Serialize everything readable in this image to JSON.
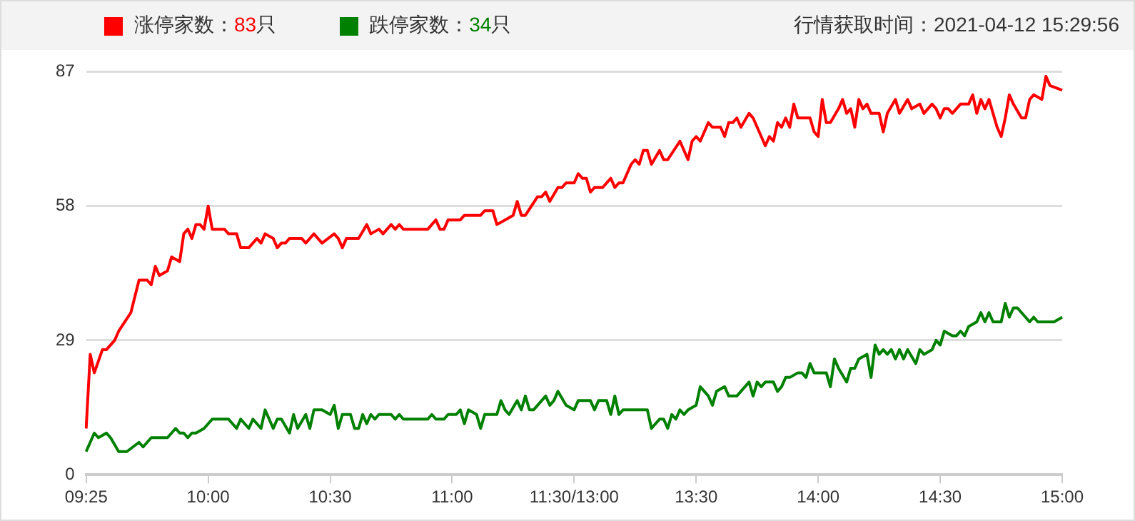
{
  "chart_data": {
    "type": "line",
    "subtitle": "行情获取时间：2021-04-12 15:29:56",
    "legend": "top",
    "grid": "y",
    "ylim": [
      0,
      87
    ],
    "yticks": [
      0,
      29,
      58,
      87
    ],
    "categories": [
      "09:25",
      null,
      null,
      null,
      null,
      null,
      null,
      null,
      null,
      null,
      null,
      null,
      null,
      null,
      null,
      null,
      null,
      null,
      null,
      null,
      null,
      null,
      null,
      null,
      null,
      null,
      null,
      null,
      null,
      null,
      "10:00",
      null,
      null,
      null,
      null,
      null,
      null,
      null,
      null,
      null,
      null,
      null,
      null,
      null,
      null,
      null,
      null,
      null,
      null,
      null,
      null,
      null,
      null,
      null,
      null,
      null,
      null,
      null,
      null,
      null,
      "10:30",
      null,
      null,
      null,
      null,
      null,
      null,
      null,
      null,
      null,
      null,
      null,
      null,
      null,
      null,
      null,
      null,
      null,
      null,
      null,
      null,
      null,
      null,
      null,
      null,
      null,
      null,
      null,
      null,
      null,
      "11:00",
      null,
      null,
      null,
      null,
      null,
      null,
      null,
      null,
      null,
      null,
      null,
      null,
      null,
      null,
      null,
      null,
      null,
      null,
      null,
      null,
      null,
      null,
      null,
      null,
      null,
      null,
      null,
      null,
      null,
      "11:30/13:00",
      null,
      null,
      null,
      null,
      null,
      null,
      null,
      null,
      null,
      null,
      null,
      null,
      null,
      null,
      null,
      null,
      null,
      null,
      null,
      null,
      null,
      null,
      null,
      null,
      null,
      null,
      null,
      null,
      null,
      "13:30",
      null,
      null,
      null,
      null,
      null,
      null,
      null,
      null,
      null,
      null,
      null,
      null,
      null,
      null,
      null,
      null,
      null,
      null,
      null,
      null,
      null,
      null,
      null,
      null,
      null,
      null,
      null,
      null,
      null,
      "14:00",
      null,
      null,
      null,
      null,
      null,
      null,
      null,
      null,
      null,
      null,
      null,
      null,
      null,
      null,
      null,
      null,
      null,
      null,
      null,
      null,
      null,
      null,
      null,
      null,
      null,
      null,
      null,
      null,
      null,
      "14:30",
      null,
      null,
      null,
      null,
      null,
      null,
      null,
      null,
      null,
      null,
      null,
      null,
      null,
      null,
      null,
      null,
      null,
      null,
      null,
      null,
      null,
      null,
      null,
      null,
      null,
      null,
      null,
      null,
      null,
      "15:00"
    ],
    "series": [
      {
        "name": "涨停家数：83只",
        "color": "#ff0000",
        "values": [
          10,
          26,
          22,
          null,
          27,
          27,
          null,
          29,
          31,
          null,
          null,
          35,
          null,
          42,
          null,
          42,
          41,
          45,
          43,
          null,
          44,
          47,
          null,
          46,
          52,
          53,
          51,
          54,
          54,
          53,
          58,
          53,
          null,
          null,
          53,
          52,
          null,
          52,
          49,
          null,
          49,
          null,
          51,
          50,
          52,
          null,
          51,
          49,
          50,
          50,
          51,
          null,
          null,
          51,
          50,
          null,
          52,
          null,
          50,
          null,
          null,
          52,
          51,
          49,
          51,
          null,
          null,
          51,
          null,
          54,
          52,
          null,
          53,
          52,
          null,
          54,
          53,
          54,
          53,
          null,
          null,
          null,
          null,
          null,
          53,
          null,
          55,
          53,
          53,
          55,
          null,
          null,
          55,
          56,
          null,
          null,
          null,
          56,
          57,
          null,
          57,
          54,
          null,
          55,
          null,
          56,
          59,
          56,
          56,
          null,
          null,
          60,
          60,
          61,
          59,
          null,
          62,
          62,
          63,
          null,
          63,
          65,
          64,
          64,
          61,
          62,
          null,
          62,
          null,
          64,
          62,
          63,
          63,
          null,
          67,
          68,
          67,
          70,
          70,
          67,
          null,
          70,
          68,
          68,
          null,
          null,
          72,
          null,
          68,
          72,
          73,
          72,
          null,
          76,
          75,
          null,
          75,
          73,
          76,
          76,
          77,
          75,
          null,
          78,
          77,
          75,
          null,
          71,
          73,
          72,
          76,
          75,
          77,
          75,
          80,
          77,
          77,
          77,
          77,
          74,
          73,
          81,
          76,
          76,
          null,
          79,
          81,
          78,
          79,
          75,
          81,
          79,
          80,
          78,
          null,
          78,
          74,
          78,
          null,
          81,
          78,
          null,
          81,
          79,
          null,
          80,
          78,
          null,
          80,
          79,
          77,
          79,
          79,
          78,
          null,
          80,
          null,
          80,
          82,
          78,
          81,
          79,
          81,
          78,
          75,
          73,
          77,
          82,
          80,
          null,
          77,
          77,
          81,
          82,
          null,
          81,
          86,
          84,
          null,
          null,
          83
        ]
      },
      {
        "name": "跌停家数：34只",
        "color": "#008000",
        "values": [
          5,
          null,
          9,
          8,
          null,
          9,
          8,
          null,
          5,
          null,
          5,
          null,
          null,
          7,
          6,
          null,
          8,
          null,
          null,
          null,
          8,
          null,
          10,
          9,
          9,
          8,
          9,
          9,
          null,
          10,
          null,
          12,
          null,
          null,
          null,
          12,
          null,
          10,
          12,
          null,
          10,
          12,
          null,
          10,
          14,
          null,
          10,
          12,
          12,
          null,
          9,
          13,
          10,
          null,
          13,
          10,
          14,
          null,
          14,
          null,
          13,
          15,
          10,
          13,
          null,
          13,
          10,
          10,
          13,
          11,
          13,
          12,
          13,
          null,
          null,
          13,
          12,
          13,
          12,
          null,
          null,
          null,
          null,
          null,
          12,
          13,
          12,
          null,
          12,
          13,
          null,
          13,
          14,
          11,
          14,
          null,
          13,
          10,
          13,
          null,
          13,
          13,
          16,
          14,
          13,
          null,
          16,
          14,
          17,
          14,
          14,
          15,
          null,
          17,
          15,
          16,
          18,
          null,
          15,
          null,
          14,
          16,
          null,
          null,
          16,
          14,
          16,
          null,
          16,
          13,
          17,
          13,
          14,
          null,
          14,
          null,
          null,
          null,
          14,
          10,
          null,
          12,
          12,
          10,
          13,
          12,
          14,
          13,
          14,
          null,
          15,
          19,
          null,
          17,
          15,
          18,
          null,
          19,
          17,
          null,
          17,
          null,
          19,
          20,
          17,
          20,
          19,
          20,
          null,
          20,
          18,
          19,
          21,
          21,
          null,
          22,
          22,
          21,
          24,
          22,
          null,
          null,
          22,
          19,
          25,
          23,
          null,
          20,
          23,
          23,
          25,
          null,
          26,
          21,
          28,
          26,
          27,
          26,
          27,
          25,
          27,
          25,
          27,
          null,
          24,
          27,
          26,
          null,
          27,
          29,
          28,
          31,
          null,
          30,
          30,
          31,
          30,
          32,
          null,
          33,
          35,
          33,
          35,
          33,
          null,
          33,
          37,
          34,
          36,
          36,
          null,
          34,
          33,
          34,
          33,
          null,
          null,
          null,
          33,
          null,
          34
        ]
      }
    ]
  }
}
